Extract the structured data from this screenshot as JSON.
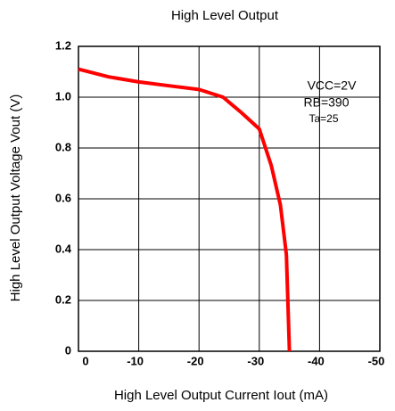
{
  "chart_data": {
    "type": "line",
    "title": "High Level Output",
    "xlabel": "High Level Output Current Iout (mA)",
    "ylabel": "High Level Output Voltage Vout (V)",
    "annotations": [
      "VCC=2V",
      "RB=390",
      "Ta=25"
    ],
    "x": [
      0,
      -5,
      -10,
      -15,
      -20,
      -24,
      -27,
      -30,
      -32,
      -33.5,
      -34.5,
      -35
    ],
    "series": [
      {
        "name": "Vout",
        "color": "#ff0000",
        "values": [
          1.11,
          1.08,
          1.06,
          1.045,
          1.03,
          1.0,
          0.94,
          0.875,
          0.73,
          0.575,
          0.38,
          0
        ]
      }
    ],
    "xlim": [
      0,
      -50
    ],
    "xticks": [
      0,
      -10,
      -20,
      -30,
      -40,
      -50
    ],
    "ylim": [
      0,
      1.2
    ],
    "yticks": [
      0,
      0.2,
      0.4,
      0.6,
      0.8,
      {
        "value": 1,
        "label": "1.0"
      },
      1.2
    ],
    "grid": true
  }
}
